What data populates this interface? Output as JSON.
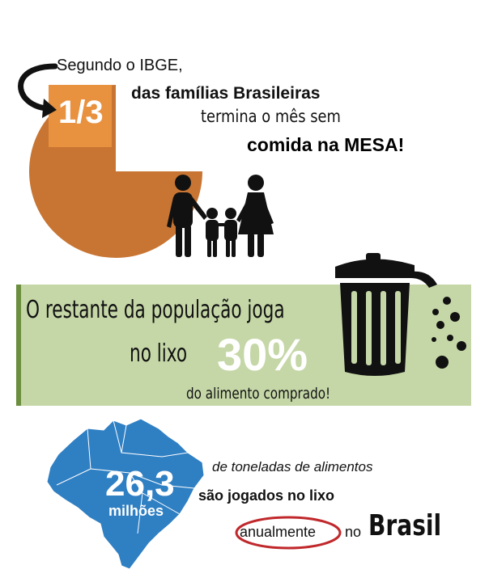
{
  "section1": {
    "source_text": "Segundo o IBGE,",
    "fraction": "1/3",
    "line_families": "das famílias Brasileiras",
    "line_ends_month": "termina o mês sem",
    "line_food": "comida na MESA!",
    "pie_fraction_highlighted": 0.3333,
    "colors": {
      "slice": "#e8913f",
      "pie": "#c87533"
    },
    "icons": [
      "curved-arrow-icon",
      "family-icon"
    ]
  },
  "section2": {
    "line_rest": "O restante da população joga",
    "line_trash": "no lixo",
    "percent": "30%",
    "line_food_bought": "do alimento  comprado!",
    "colors": {
      "band": "#c5d7a7",
      "band_border": "#6b8f3e"
    },
    "icons": [
      "trash-can-icon"
    ]
  },
  "section3": {
    "number": "26,3",
    "unit": "milhões",
    "line_tons": "de toneladas de alimentos",
    "line_thrown": "são jogados no lixo",
    "word_annually": "anualmente",
    "word_in": "no",
    "word_country": "Brasil",
    "colors": {
      "map": "#2f7fc3",
      "circle": "#c0282b"
    },
    "icons": [
      "brazil-map-icon"
    ]
  }
}
